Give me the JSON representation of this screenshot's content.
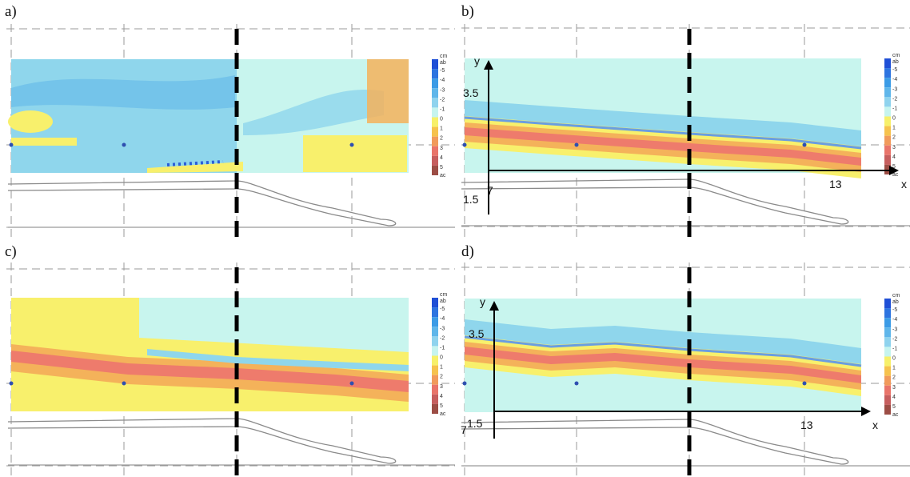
{
  "panels": [
    {
      "id": "a",
      "label": "a)",
      "axes": false
    },
    {
      "id": "b",
      "label": "b)",
      "axes": true
    },
    {
      "id": "c",
      "label": "c)",
      "axes": false
    },
    {
      "id": "d",
      "label": "d)",
      "axes": true
    }
  ],
  "colorbar": {
    "unit": "cm",
    "top": "ab",
    "bottom": "ac",
    "ticks": [
      "-5",
      "-4",
      "-3",
      "-2",
      "-1",
      "0",
      "1",
      "2",
      "3",
      "4",
      "5"
    ],
    "colors": [
      "#1f4fd6",
      "#2d74e0",
      "#3b9be6",
      "#5fb6ea",
      "#8fd3ee",
      "#c6f4ef",
      "#f7f06a",
      "#f6c24d",
      "#f19a5b",
      "#e9746a",
      "#c65e5e",
      "#9c4d45"
    ]
  },
  "axis_labels": {
    "y": "y",
    "x": "x",
    "y_tick": "3.5",
    "y_origin": "1.5",
    "x_origin": "7",
    "x_tick": "13"
  },
  "colors": {
    "field_base": "#c8f5ee",
    "light_blue": "#8fd6ec",
    "mid_blue": "#63b8ea",
    "band_blue": "#6a9ee0",
    "yellow": "#f8f06c",
    "orange": "#f4b25a",
    "red": "#ee7b6c"
  }
}
